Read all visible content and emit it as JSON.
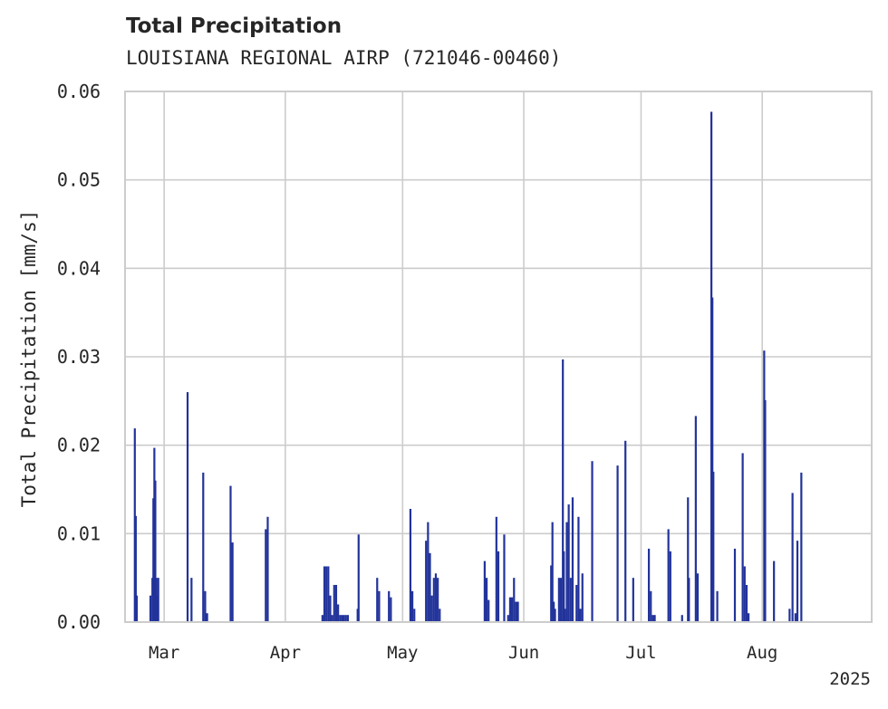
{
  "chart_data": {
    "type": "bar",
    "title": "Total Precipitation",
    "subtitle": "LOUISIANA REGIONAL AIRP (721046-00460)",
    "ylabel": "Total Precipitation [mm/s]",
    "xlabel": "",
    "ylim": [
      0,
      0.06
    ],
    "xlim": [
      "2025-02-19",
      "2025-08-29"
    ],
    "yticks": [
      "0.00",
      "0.01",
      "0.02",
      "0.03",
      "0.04",
      "0.05",
      "0.06"
    ],
    "xticks": [
      {
        "date": "2025-03-01",
        "label": "Mar"
      },
      {
        "date": "2025-04-01",
        "label": "Apr"
      },
      {
        "date": "2025-05-01",
        "label": "May"
      },
      {
        "date": "2025-06-01",
        "label": "Jun"
      },
      {
        "date": "2025-07-01",
        "label": "Jul"
      },
      {
        "date": "2025-08-01",
        "label": "Aug"
      }
    ],
    "year_label": "2025",
    "grid": true,
    "color": "#22339a",
    "series": [
      {
        "values": [
          [
            "2025-02-21T12:00",
            0.0219
          ],
          [
            "2025-02-21T18:00",
            0.012
          ],
          [
            "2025-02-22T00:00",
            0.003
          ],
          [
            "2025-02-25T12:00",
            0.003
          ],
          [
            "2025-02-26T00:00",
            0.005
          ],
          [
            "2025-02-26T06:00",
            0.014
          ],
          [
            "2025-02-26T12:00",
            0.0197
          ],
          [
            "2025-02-26T18:00",
            0.016
          ],
          [
            "2025-02-27T00:00",
            0.005
          ],
          [
            "2025-02-27T06:00",
            0.003
          ],
          [
            "2025-02-27T12:00",
            0.005
          ],
          [
            "2025-03-07T00:00",
            0.026
          ],
          [
            "2025-03-08T00:00",
            0.005
          ],
          [
            "2025-03-11T00:00",
            0.0169
          ],
          [
            "2025-03-11T12:00",
            0.0035
          ],
          [
            "2025-03-12T00:00",
            0.001
          ],
          [
            "2025-03-18T00:00",
            0.0154
          ],
          [
            "2025-03-18T12:00",
            0.009
          ],
          [
            "2025-03-27T00:00",
            0.0105
          ],
          [
            "2025-03-27T12:00",
            0.0119
          ],
          [
            "2025-04-10T12:00",
            0.0008
          ],
          [
            "2025-04-11T00:00",
            0.0063
          ],
          [
            "2025-04-11T12:00",
            0.0063
          ],
          [
            "2025-04-12T00:00",
            0.0063
          ],
          [
            "2025-04-12T12:00",
            0.003
          ],
          [
            "2025-04-13T00:00",
            0.0008
          ],
          [
            "2025-04-13T12:00",
            0.0042
          ],
          [
            "2025-04-14T00:00",
            0.0042
          ],
          [
            "2025-04-14T12:00",
            0.002
          ],
          [
            "2025-04-15T00:00",
            0.0008
          ],
          [
            "2025-04-15T12:00",
            0.0008
          ],
          [
            "2025-04-16T00:00",
            0.0008
          ],
          [
            "2025-04-16T12:00",
            0.0008
          ],
          [
            "2025-04-17T00:00",
            0.0008
          ],
          [
            "2025-04-19T12:00",
            0.0015
          ],
          [
            "2025-04-19T18:00",
            0.0099
          ],
          [
            "2025-04-24T12:00",
            0.005
          ],
          [
            "2025-04-25T00:00",
            0.0035
          ],
          [
            "2025-04-27T12:00",
            0.0035
          ],
          [
            "2025-04-28T00:00",
            0.0028
          ],
          [
            "2025-05-03T00:00",
            0.0128
          ],
          [
            "2025-05-03T12:00",
            0.0035
          ],
          [
            "2025-05-04T00:00",
            0.0015
          ],
          [
            "2025-05-07T00:00",
            0.0092
          ],
          [
            "2025-05-07T12:00",
            0.0113
          ],
          [
            "2025-05-08T00:00",
            0.0078
          ],
          [
            "2025-05-08T12:00",
            0.003
          ],
          [
            "2025-05-09T00:00",
            0.005
          ],
          [
            "2025-05-09T12:00",
            0.0055
          ],
          [
            "2025-05-10T00:00",
            0.005
          ],
          [
            "2025-05-10T12:00",
            0.0015
          ],
          [
            "2025-05-22T00:00",
            0.0069
          ],
          [
            "2025-05-22T12:00",
            0.005
          ],
          [
            "2025-05-23T00:00",
            0.0025
          ],
          [
            "2025-05-25T00:00",
            0.0119
          ],
          [
            "2025-05-25T12:00",
            0.008
          ],
          [
            "2025-05-27T00:00",
            0.0099
          ],
          [
            "2025-05-28T00:00",
            0.0008
          ],
          [
            "2025-05-28T12:00",
            0.0028
          ],
          [
            "2025-05-29T00:00",
            0.0028
          ],
          [
            "2025-05-29T12:00",
            0.005
          ],
          [
            "2025-05-30T00:00",
            0.0023
          ],
          [
            "2025-05-30T12:00",
            0.0023
          ],
          [
            "2025-06-08T00:00",
            0.0064
          ],
          [
            "2025-06-08T08:00",
            0.0113
          ],
          [
            "2025-06-08T16:00",
            0.0023
          ],
          [
            "2025-06-09T00:00",
            0.0015
          ],
          [
            "2025-06-10T00:00",
            0.005
          ],
          [
            "2025-06-10T12:00",
            0.005
          ],
          [
            "2025-06-11T00:00",
            0.0297
          ],
          [
            "2025-06-11T06:00",
            0.008
          ],
          [
            "2025-06-11T12:00",
            0.0015
          ],
          [
            "2025-06-12T00:00",
            0.0113
          ],
          [
            "2025-06-12T12:00",
            0.0133
          ],
          [
            "2025-06-13T00:00",
            0.005
          ],
          [
            "2025-06-13T12:00",
            0.0141
          ],
          [
            "2025-06-14T12:00",
            0.0042
          ],
          [
            "2025-06-15T00:00",
            0.0119
          ],
          [
            "2025-06-15T12:00",
            0.0015
          ],
          [
            "2025-06-16T00:00",
            0.0055
          ],
          [
            "2025-06-18T12:00",
            0.0182
          ],
          [
            "2025-06-25T00:00",
            0.0177
          ],
          [
            "2025-06-27T00:00",
            0.0205
          ],
          [
            "2025-06-29T00:00",
            0.005
          ],
          [
            "2025-07-03T00:00",
            0.0083
          ],
          [
            "2025-07-03T12:00",
            0.0035
          ],
          [
            "2025-07-04T00:00",
            0.0008
          ],
          [
            "2025-07-04T12:00",
            0.0008
          ],
          [
            "2025-07-08T00:00",
            0.0105
          ],
          [
            "2025-07-08T12:00",
            0.008
          ],
          [
            "2025-07-11T12:00",
            0.0008
          ],
          [
            "2025-07-13T00:00",
            0.0141
          ],
          [
            "2025-07-13T06:00",
            0.005
          ],
          [
            "2025-07-15T00:00",
            0.0233
          ],
          [
            "2025-07-15T12:00",
            0.0055
          ],
          [
            "2025-07-19T00:00",
            0.0577
          ],
          [
            "2025-07-19T06:00",
            0.0367
          ],
          [
            "2025-07-19T12:00",
            0.017
          ],
          [
            "2025-07-20T12:00",
            0.0035
          ],
          [
            "2025-07-25T00:00",
            0.0083
          ],
          [
            "2025-07-27T00:00",
            0.0191
          ],
          [
            "2025-07-27T12:00",
            0.0063
          ],
          [
            "2025-07-28T00:00",
            0.0042
          ],
          [
            "2025-07-28T12:00",
            0.001
          ],
          [
            "2025-08-01T12:00",
            0.0307
          ],
          [
            "2025-08-01T18:00",
            0.0251
          ],
          [
            "2025-08-04T00:00",
            0.0069
          ],
          [
            "2025-08-08T00:00",
            0.0015
          ],
          [
            "2025-08-08T18:00",
            0.0146
          ],
          [
            "2025-08-09T12:00",
            0.001
          ],
          [
            "2025-08-10T00:00",
            0.0092
          ],
          [
            "2025-08-11T00:00",
            0.0169
          ]
        ]
      }
    ]
  }
}
